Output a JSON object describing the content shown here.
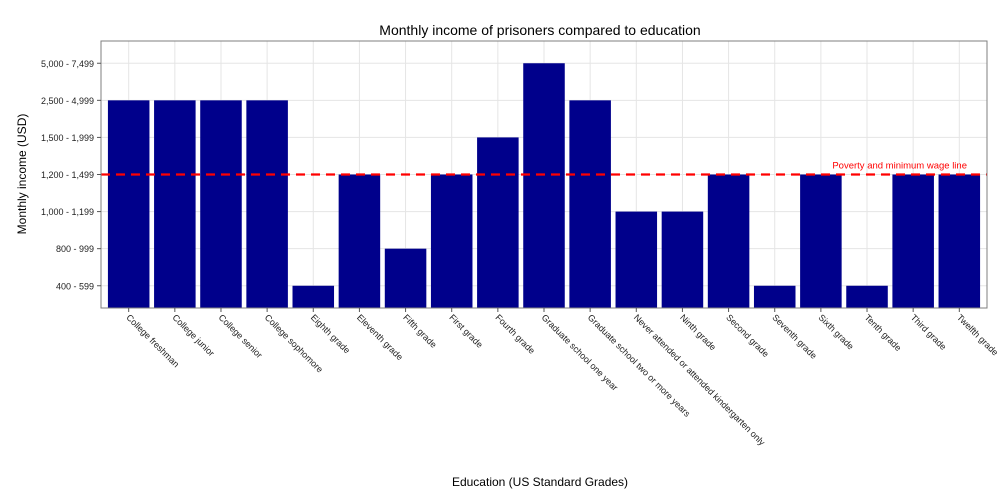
{
  "chart_data": {
    "type": "bar",
    "title": "Monthly income of prisoners compared to education",
    "xlabel": "Education (US Standard Grades)",
    "ylabel": "Monthly income (USD)",
    "y_levels": [
      "400 - 599",
      "800 - 999",
      "1,000 - 1,199",
      "1,200 - 1,499",
      "1,500 - 1,999",
      "2,500 - 4,999",
      "5,000 - 7,499"
    ],
    "categories": [
      "College freshman",
      "College junior",
      "College senior",
      "College sophomore",
      "Eighth grade",
      "Eleventh grade",
      "Fifth grade",
      "First grade",
      "Fourth grade",
      "Graduate school one year",
      "Graduate school two or more years",
      "Never attended or attended kindergarten only",
      "Ninth grade",
      "Second grade",
      "Seventh grade",
      "Sixth grade",
      "Tenth grade",
      "Third grade",
      "Twelfth grade"
    ],
    "values": [
      "2,500 - 4,999",
      "2,500 - 4,999",
      "2,500 - 4,999",
      "2,500 - 4,999",
      "400 - 599",
      "1,200 - 1,499",
      "800 - 999",
      "1,200 - 1,499",
      "1,500 - 1,999",
      "5,000 - 7,499",
      "2,500 - 4,999",
      "1,000 - 1,199",
      "1,000 - 1,199",
      "1,200 - 1,499",
      "400 - 599",
      "1,200 - 1,499",
      "400 - 599",
      "1,200 - 1,499",
      "1,200 - 1,499"
    ],
    "reference_line": {
      "value": "1,200 - 1,499",
      "label": "Poverty and minimum wage line",
      "color": "#ff0000",
      "style": "dashed"
    },
    "bar_color": "#00008b",
    "grid": true,
    "grid_color": "#e5e5e5",
    "border_color": "#7f7f7f"
  }
}
